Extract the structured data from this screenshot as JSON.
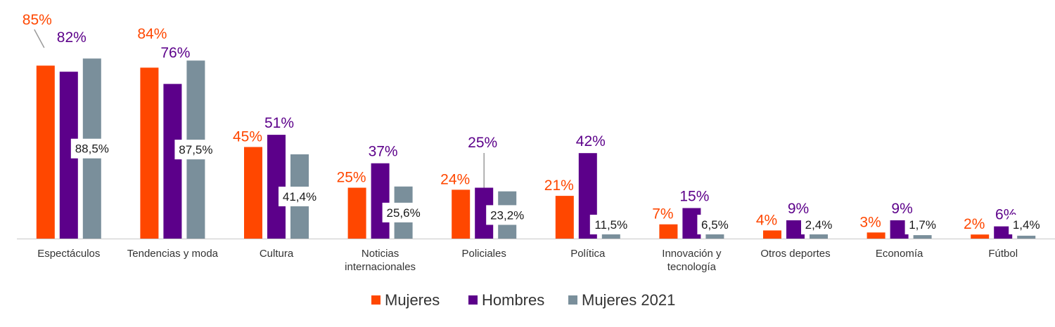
{
  "chart_data": {
    "type": "bar",
    "title": "",
    "xlabel": "",
    "ylabel": "",
    "ylim": [
      0,
      100
    ],
    "grid": false,
    "legend_position": "bottom",
    "categories": [
      "Espectáculos",
      "Tendencias y moda",
      "Cultura",
      "Noticias internacionales",
      "Policiales",
      "Política",
      "Innovación y tecnología",
      "Otros deportes",
      "Economía",
      "Fútbol"
    ],
    "category_lines": [
      [
        "Espectáculos"
      ],
      [
        "Tendencias y moda"
      ],
      [
        "Cultura"
      ],
      [
        "Noticias",
        "internacionales"
      ],
      [
        "Policiales"
      ],
      [
        "Política"
      ],
      [
        "Innovación y",
        "tecnología"
      ],
      [
        "Otros deportes"
      ],
      [
        "Economía"
      ],
      [
        "Fútbol"
      ]
    ],
    "series": [
      {
        "name": "Mujeres",
        "color": "#ff4700",
        "values": [
          85,
          84,
          45,
          25,
          24,
          21,
          7,
          4,
          3,
          2
        ],
        "labels": [
          "85%",
          "84%",
          "45%",
          "25%",
          "24%",
          "21%",
          "7%",
          "4%",
          "3%",
          "2%"
        ]
      },
      {
        "name": "Hombres",
        "color": "#5c008a",
        "values": [
          82,
          76,
          51,
          37,
          25,
          42,
          15,
          9,
          9,
          6
        ],
        "labels": [
          "82%",
          "76%",
          "51%",
          "37%",
          "25%",
          "42%",
          "15%",
          "9%",
          "9%",
          "6%"
        ]
      },
      {
        "name": "Mujeres 2021",
        "color": "#7a8f9b",
        "values": [
          88.5,
          87.5,
          41.4,
          25.6,
          23.2,
          11.5,
          6.5,
          2.4,
          1.7,
          1.4
        ],
        "labels": [
          "88,5%",
          "87,5%",
          "41,4%",
          "25,6%",
          "23,2%",
          "11,5%",
          "6,5%",
          "2,4%",
          "1,7%",
          "1,4%"
        ]
      }
    ]
  }
}
